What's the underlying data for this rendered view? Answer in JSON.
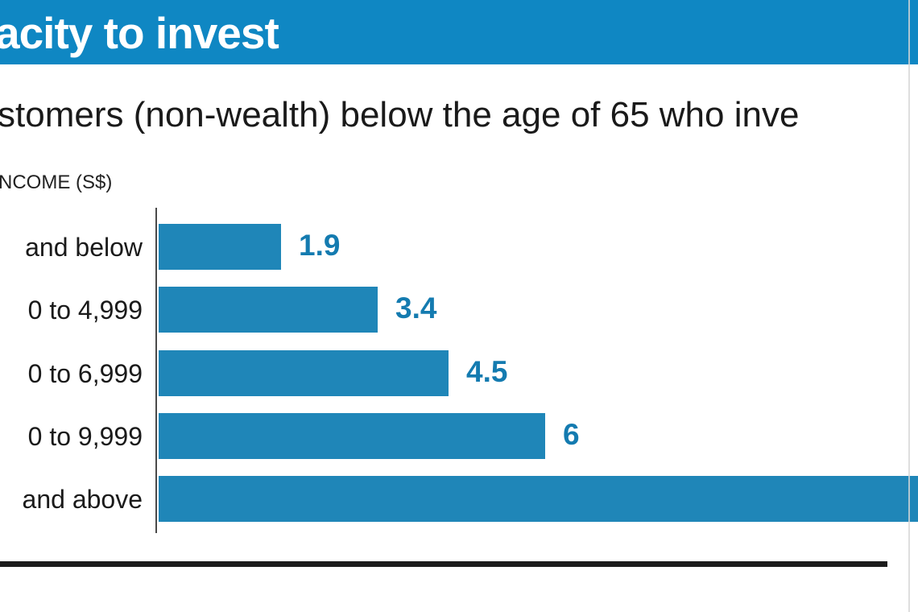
{
  "header": {
    "title": "acity to invest"
  },
  "subtitle": {
    "text": "stomers (non-wealth) below the age of 65 who inve"
  },
  "chart_data": {
    "type": "bar",
    "orientation": "horizontal",
    "title": "acity to invest",
    "subtitle": "stomers (non-wealth) below the age of 65 who inve",
    "axis_label": "NCOME (S$)",
    "categories": [
      "and below",
      "0 to 4,999",
      "0 to 6,999",
      "0 to 9,999",
      "and above"
    ],
    "values": [
      1.9,
      3.4,
      4.5,
      6,
      null
    ],
    "value_labels": [
      "1.9",
      "3.4",
      "4.5",
      "6",
      ""
    ],
    "xlim": [
      0,
      11.8
    ],
    "last_bar_cropped_at_right_edge": true,
    "grid": false,
    "legend": false
  },
  "colors": {
    "header_bg": "#0f87c3",
    "bar": "#1f86b8",
    "value_label": "#147bb0",
    "text": "#1a1a1a"
  }
}
